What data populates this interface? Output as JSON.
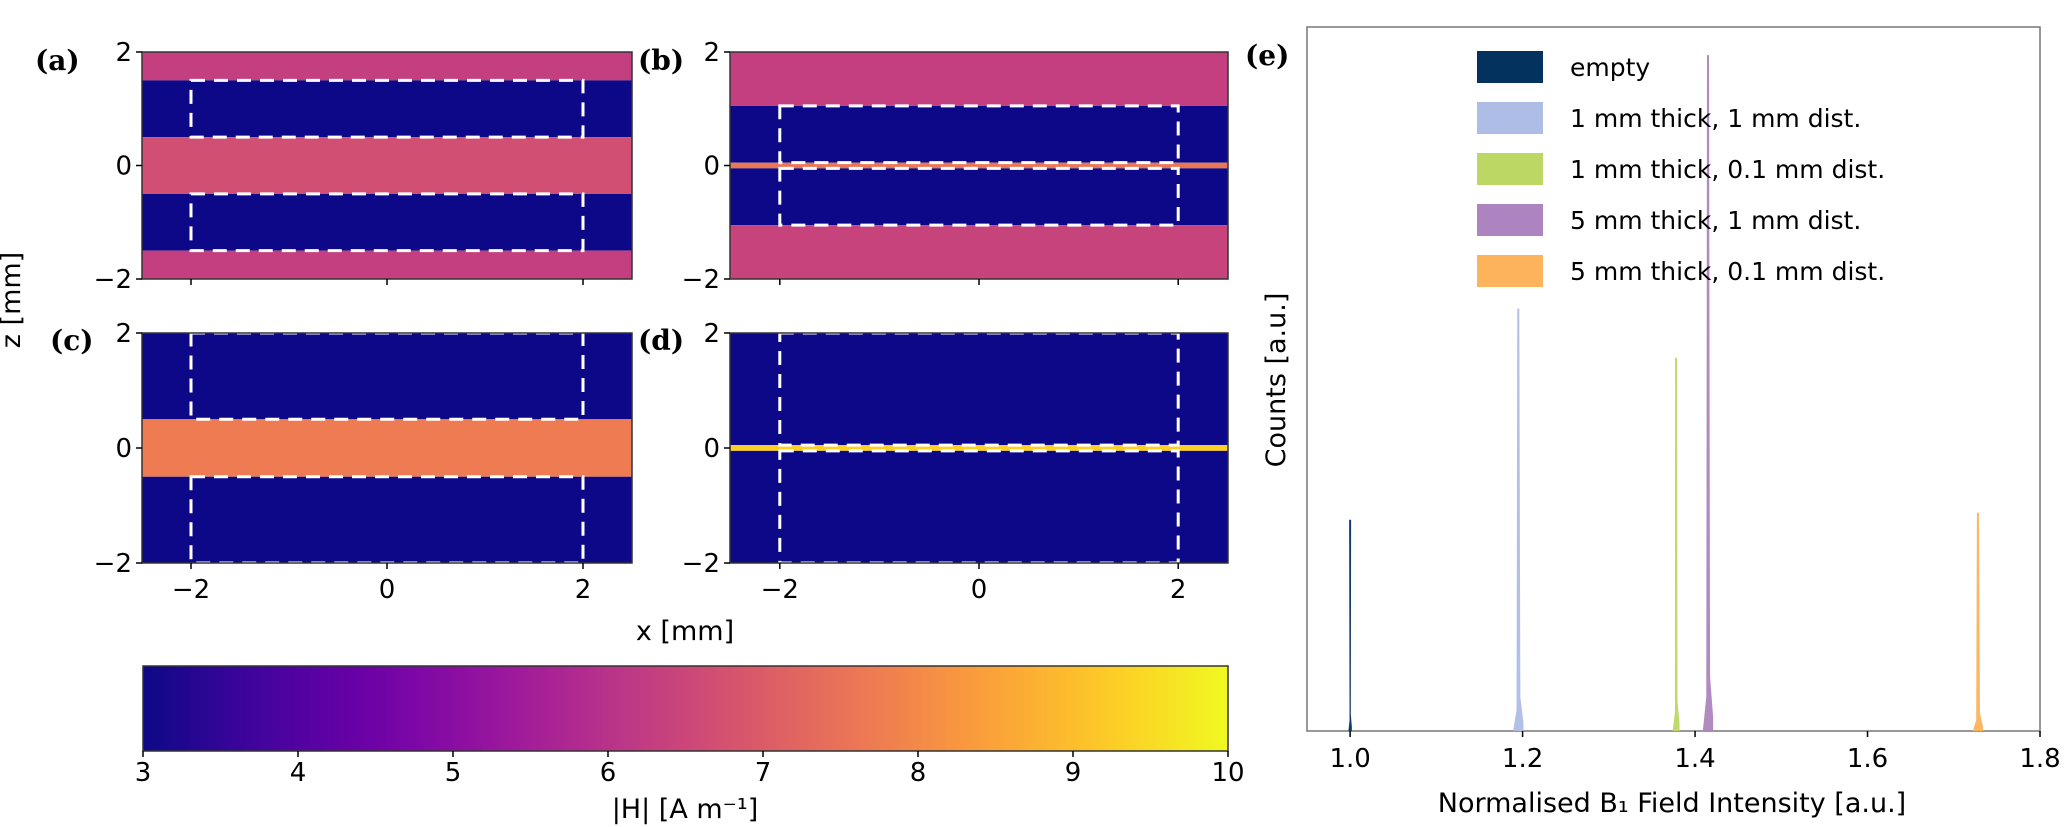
{
  "chart_data": [
    {
      "type": "heatmap",
      "panel": "(a)",
      "xlim": [
        -2.5,
        2.5
      ],
      "ylim": [
        -2,
        2
      ],
      "xticks": [
        -2,
        0,
        2
      ],
      "yticks": [
        -2,
        0,
        2
      ],
      "yticklabels": [
        "−2",
        "0",
        "2"
      ],
      "show_xticklabels": false,
      "layers": [
        {
          "z": [
            1.5,
            2
          ],
          "value": 6.3
        },
        {
          "z": [
            0.5,
            1.5
          ],
          "value": 3
        },
        {
          "z": [
            -0.5,
            0.5
          ],
          "value": 6.7
        },
        {
          "z": [
            -1.5,
            -0.5
          ],
          "value": 3
        },
        {
          "z": [
            -2,
            -1.5
          ],
          "value": 6.3
        }
      ],
      "dashed_boxes": [
        {
          "x": [
            -2,
            2
          ],
          "z": [
            0.5,
            1.5
          ]
        },
        {
          "x": [
            -2,
            2
          ],
          "z": [
            -1.5,
            -0.5
          ]
        }
      ]
    },
    {
      "type": "heatmap",
      "panel": "(b)",
      "xlim": [
        -2.5,
        2.5
      ],
      "ylim": [
        -2,
        2
      ],
      "xticks": [
        -2,
        0,
        2
      ],
      "yticks": [
        -2,
        0,
        2
      ],
      "yticklabels": [
        "−2",
        "0",
        "2"
      ],
      "show_xticklabels": false,
      "layers": [
        {
          "z": [
            1.05,
            2
          ],
          "value": 6.3
        },
        {
          "z": [
            0.05,
            1.05
          ],
          "value": 3
        },
        {
          "z": [
            -0.05,
            0.05
          ],
          "value": 7.6
        },
        {
          "z": [
            -1.05,
            -0.05
          ],
          "value": 3
        },
        {
          "z": [
            -2,
            -1.05
          ],
          "value": 6.4
        }
      ],
      "dashed_boxes": [
        {
          "x": [
            -2,
            2
          ],
          "z": [
            0.05,
            1.05
          ]
        },
        {
          "x": [
            -2,
            2
          ],
          "z": [
            -1.05,
            -0.05
          ]
        }
      ]
    },
    {
      "type": "heatmap",
      "panel": "(c)",
      "xlim": [
        -2.5,
        2.5
      ],
      "ylim": [
        -2,
        2
      ],
      "xticks": [
        -2,
        0,
        2
      ],
      "xticklabels": [
        "−2",
        "0",
        "2"
      ],
      "yticks": [
        -2,
        0,
        2
      ],
      "yticklabels": [
        "−2",
        "0",
        "2"
      ],
      "show_xticklabels": true,
      "layers": [
        {
          "z": [
            0.5,
            2
          ],
          "value": 3
        },
        {
          "z": [
            -0.5,
            0.5
          ],
          "value": 7.7
        },
        {
          "z": [
            -2,
            -0.5
          ],
          "value": 3
        }
      ],
      "dashed_boxes": [
        {
          "x": [
            -2,
            2
          ],
          "z": [
            0.5,
            2
          ]
        },
        {
          "x": [
            -2,
            2
          ],
          "z": [
            -2,
            -0.5
          ]
        }
      ]
    },
    {
      "type": "heatmap",
      "panel": "(d)",
      "xlim": [
        -2.5,
        2.5
      ],
      "ylim": [
        -2,
        2
      ],
      "xticks": [
        -2,
        0,
        2
      ],
      "xticklabels": [
        "−2",
        "0",
        "2"
      ],
      "yticks": [
        -2,
        0,
        2
      ],
      "yticklabels": [
        "−2",
        "0",
        "2"
      ],
      "show_xticklabels": true,
      "layers": [
        {
          "z": [
            0.05,
            2
          ],
          "value": 3
        },
        {
          "z": [
            -0.05,
            0.05
          ],
          "value": 9.3
        },
        {
          "z": [
            -2,
            -0.05
          ],
          "value": 3
        }
      ],
      "dashed_boxes": [
        {
          "x": [
            -2,
            2
          ],
          "z": [
            0.05,
            2
          ]
        },
        {
          "x": [
            -2,
            2
          ],
          "z": [
            -2,
            -0.05
          ]
        }
      ]
    },
    {
      "type": "colorbar",
      "colormap": "plasma",
      "range": [
        3,
        10
      ],
      "ticks": [
        3,
        4,
        5,
        6,
        7,
        8,
        9,
        10
      ],
      "label": "|H| [A m⁻¹]"
    },
    {
      "type": "bar",
      "panel": "(e)",
      "title": "",
      "xlabel": "Normalised B₁ Field Intensity [a.u.]",
      "ylabel": "Counts [a.u.]",
      "xlim": [
        0.95,
        1.8
      ],
      "ylim": [
        0,
        1
      ],
      "xticks": [
        1.0,
        1.2,
        1.4,
        1.6,
        1.8
      ],
      "xticklabels": [
        "1.0",
        "1.2",
        "1.4",
        "1.6",
        "1.8"
      ],
      "legend_position": "top-right",
      "series": [
        {
          "name": "empty",
          "color": "#04325f",
          "peak": 1.0,
          "height": 0.3,
          "width": 0.004
        },
        {
          "name": "1 mm thick, 1 mm dist.",
          "color": "#aebde6",
          "peak": 1.195,
          "height": 0.6,
          "width": 0.012
        },
        {
          "name": "1 mm thick, 0.1 mm dist.",
          "color": "#bcd763",
          "peak": 1.378,
          "height": 0.53,
          "width": 0.008
        },
        {
          "name": "5 mm thick, 1 mm dist.",
          "color": "#ad84bf",
          "peak": 1.415,
          "height": 0.96,
          "width": 0.012
        },
        {
          "name": "5 mm thick, 0.1 mm dist.",
          "color": "#fdb35c",
          "peak": 1.728,
          "height": 0.31,
          "width": 0.012
        }
      ]
    }
  ],
  "labels": {
    "x_axis": "x [mm]",
    "z_axis": "z [mm]",
    "panel_a": "(a)",
    "panel_b": "(b)",
    "panel_c": "(c)",
    "panel_d": "(d)",
    "panel_e": "(e)"
  },
  "colors": {
    "background": "#ffffff",
    "dash": "#ffffff"
  }
}
